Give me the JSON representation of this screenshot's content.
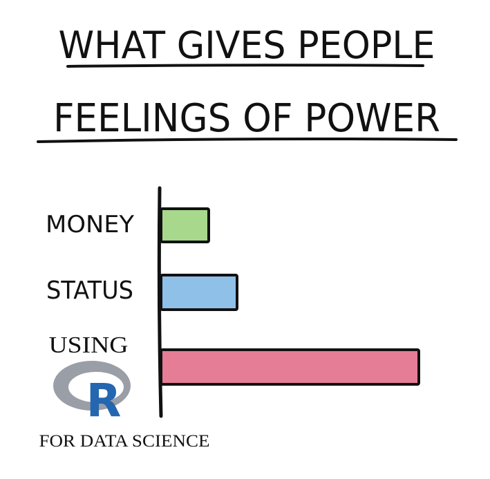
{
  "chart_data": {
    "type": "bar",
    "orientation": "horizontal",
    "title_lines": [
      "WHAT GIVES PEOPLE",
      "FEELINGS OF POWER"
    ],
    "categories": [
      "MONEY",
      "STATUS",
      "USING"
    ],
    "values": [
      1,
      1.6,
      5.4
    ],
    "colors": [
      "#a8d88c",
      "#8fc0e8",
      "#e67d96"
    ],
    "logo_text": "R",
    "logo_caption": "FOR DATA SCIENCE",
    "xlabel": "",
    "ylabel": "",
    "grid": false,
    "legend": "none"
  },
  "colors": {
    "ink": "#111111",
    "logo_ring": "#9a9ea6",
    "logo_letter": "#2566b0"
  }
}
